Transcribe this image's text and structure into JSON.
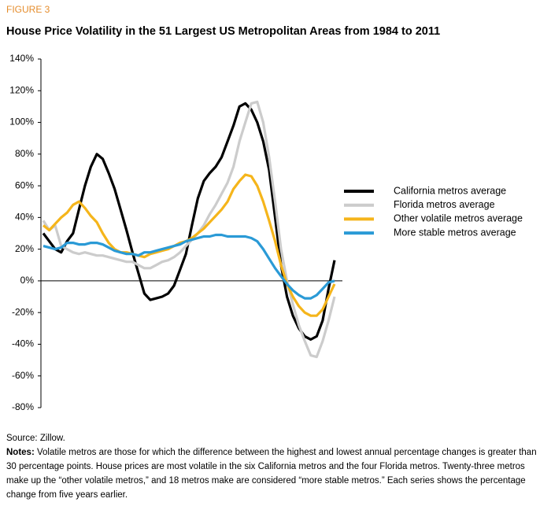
{
  "chart_data": {
    "type": "line",
    "figure_label": "FIGURE 3",
    "title": "House Price Volatility in the 51 Largest US Metropolitan Areas from 1984 to 2011",
    "ylim": [
      -80,
      140
    ],
    "yticks": [
      {
        "value": -80,
        "label": "-80%"
      },
      {
        "value": -60,
        "label": "-60%"
      },
      {
        "value": -40,
        "label": "-40%"
      },
      {
        "value": -20,
        "label": "-20%"
      },
      {
        "value": 0,
        "label": "0%"
      },
      {
        "value": 20,
        "label": "20%"
      },
      {
        "value": 40,
        "label": "40%"
      },
      {
        "value": 60,
        "label": "60%"
      },
      {
        "value": 80,
        "label": "80%"
      },
      {
        "value": 100,
        "label": "100%"
      },
      {
        "value": 120,
        "label": "120%"
      },
      {
        "value": 140,
        "label": "140%"
      }
    ],
    "legend": "right",
    "series": [
      {
        "name": "California metros average",
        "color": "#000000",
        "values": [
          30,
          25,
          20,
          18,
          25,
          30,
          45,
          60,
          72,
          80,
          77,
          68,
          58,
          45,
          32,
          18,
          5,
          -8,
          -12,
          -11,
          -10,
          -8,
          -3,
          7,
          17,
          35,
          52,
          63,
          68,
          72,
          78,
          88,
          98,
          110,
          112,
          108,
          100,
          88,
          70,
          40,
          10,
          -10,
          -22,
          -30,
          -35,
          -37,
          -35,
          -25,
          -5,
          13
        ]
      },
      {
        "name": "Florida metros average",
        "color": "#cccccc",
        "values": [
          38,
          32,
          35,
          22,
          20,
          18,
          17,
          18,
          17,
          16,
          16,
          15,
          14,
          13,
          12,
          12,
          10,
          8,
          8,
          10,
          12,
          13,
          15,
          18,
          22,
          26,
          30,
          35,
          42,
          48,
          55,
          62,
          72,
          88,
          100,
          112,
          113,
          100,
          78,
          50,
          20,
          0,
          -15,
          -28,
          -38,
          -47,
          -48,
          -38,
          -25,
          -10
        ]
      },
      {
        "name": "Other volatile metros average",
        "color": "#f5b51b",
        "values": [
          35,
          32,
          36,
          40,
          43,
          48,
          50,
          46,
          41,
          37,
          30,
          24,
          20,
          18,
          18,
          17,
          16,
          15,
          17,
          18,
          19,
          20,
          22,
          24,
          25,
          27,
          30,
          33,
          37,
          41,
          45,
          50,
          58,
          63,
          67,
          66,
          60,
          50,
          38,
          25,
          10,
          -2,
          -10,
          -16,
          -20,
          -22,
          -22,
          -18,
          -10,
          -2
        ]
      },
      {
        "name": "More stable metros average",
        "color": "#2a9ad6",
        "values": [
          22,
          21,
          20,
          21,
          24,
          24,
          23,
          23,
          24,
          24,
          23,
          21,
          19,
          18,
          17,
          17,
          16,
          18,
          18,
          19,
          20,
          21,
          22,
          23,
          25,
          26,
          27,
          28,
          28,
          29,
          29,
          28,
          28,
          28,
          28,
          27,
          25,
          20,
          14,
          8,
          3,
          -2,
          -6,
          -9,
          -11,
          -11,
          -9,
          -5,
          -1,
          0
        ]
      }
    ],
    "source": "Source: Zillow.",
    "notes_label": "Notes:",
    "notes": "Volatile metros are those for which the difference between the highest and lowest annual percentage changes is greater than 30 percentage points. House prices are most volatile in the six California metros and the four Florida metros. Twenty-three metros make up the “other volatile metros,” and 18 metros make are considered “more stable metros.” Each series shows the percentage change from five years earlier."
  }
}
